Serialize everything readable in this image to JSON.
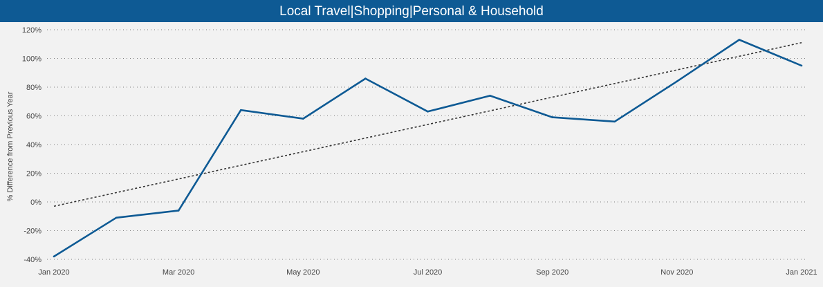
{
  "title": "Local Travel|Shopping|Personal & Household",
  "colors": {
    "header_bg": "#0e5a94",
    "series": "#0e5a94",
    "trend": "#333333",
    "background": "#f2f2f2"
  },
  "chart_data": {
    "type": "line",
    "title": "Local Travel|Shopping|Personal & Household",
    "xlabel": "",
    "ylabel": "% Difference from Previous Year",
    "y_ticks": [
      "-40%",
      "-20%",
      "0%",
      "20%",
      "40%",
      "60%",
      "80%",
      "100%",
      "120%"
    ],
    "ylim": [
      -40,
      120
    ],
    "x_ticks": [
      "Jan 2020",
      "Mar 2020",
      "May 2020",
      "Jul 2020",
      "Sep 2020",
      "Nov 2020",
      "Jan 2021"
    ],
    "x": [
      "Jan 2020",
      "Feb 2020",
      "Mar 2020",
      "Apr 2020",
      "May 2020",
      "Jun 2020",
      "Jul 2020",
      "Aug 2020",
      "Sep 2020",
      "Oct 2020",
      "Nov 2020",
      "Dec 2020",
      "Jan 2021"
    ],
    "series": [
      {
        "values": [
          -38,
          -11,
          -6,
          64,
          58,
          86,
          63,
          74,
          59,
          56,
          84,
          113,
          95
        ]
      }
    ],
    "trend_line": {
      "start": -3,
      "end": 111,
      "style": "dotted"
    },
    "grid": "horizontal dotted"
  }
}
